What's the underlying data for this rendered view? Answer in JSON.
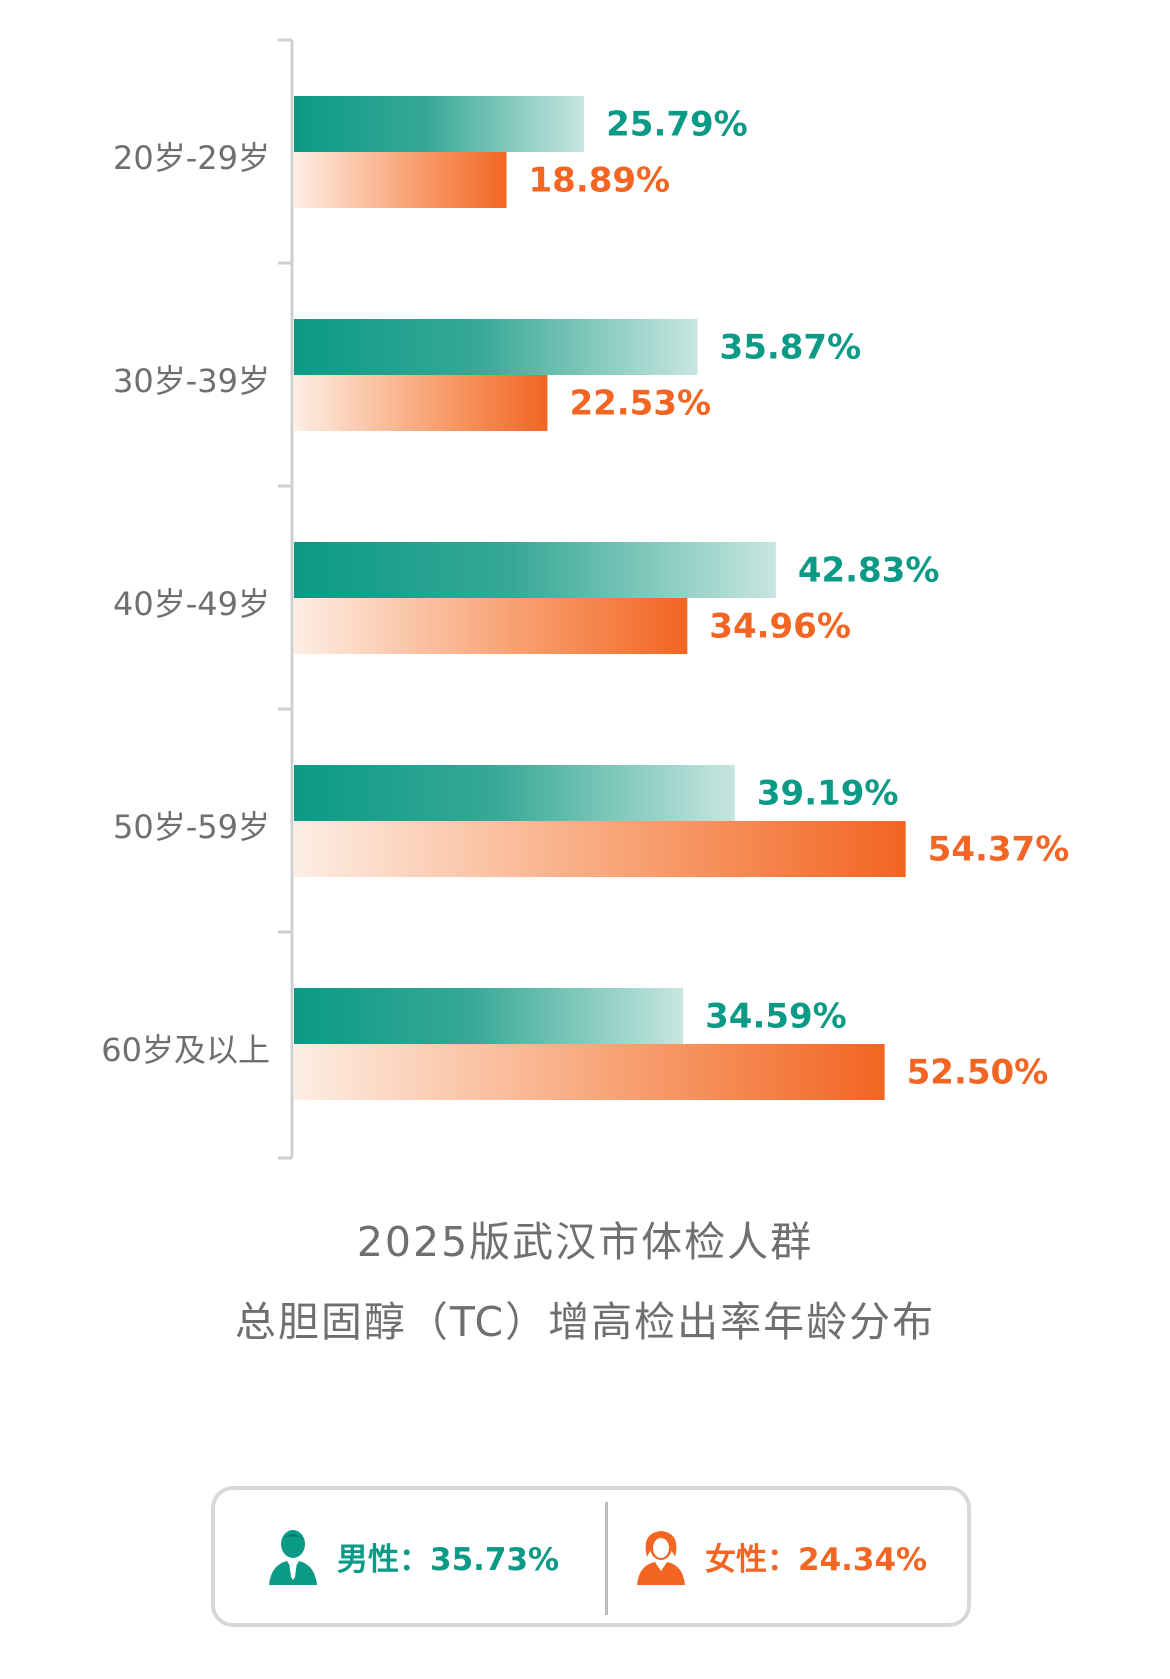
{
  "chart_data": {
    "type": "bar",
    "orientation": "horizontal",
    "title_lines": [
      "2025版武汉市体检人群",
      "总胆固醇（TC）增高检出率年龄分布"
    ],
    "categories": [
      "20岁-29岁",
      "30岁-39岁",
      "40岁-49岁",
      "50岁-59岁",
      "60岁及以上"
    ],
    "series": [
      {
        "name": "男性",
        "color": "#0b9a86",
        "values": [
          25.79,
          35.87,
          42.83,
          39.19,
          34.59
        ],
        "labels": [
          "25.79%",
          "35.87%",
          "42.83%",
          "39.19%",
          "34.59%"
        ]
      },
      {
        "name": "女性",
        "color": "#f26522",
        "values": [
          18.89,
          22.53,
          34.96,
          54.37,
          52.5
        ],
        "labels": [
          "18.89%",
          "22.53%",
          "34.96%",
          "54.37%",
          "52.50%"
        ]
      }
    ],
    "xlim": [
      0,
      60
    ],
    "grid": false,
    "legend_position": "bottom"
  },
  "legend": {
    "male": {
      "label": "男性：35.73%",
      "icon": "male-user-icon",
      "color": "#0b9a86"
    },
    "female": {
      "label": "女性：24.34%",
      "icon": "female-user-icon",
      "color": "#f26522"
    }
  }
}
